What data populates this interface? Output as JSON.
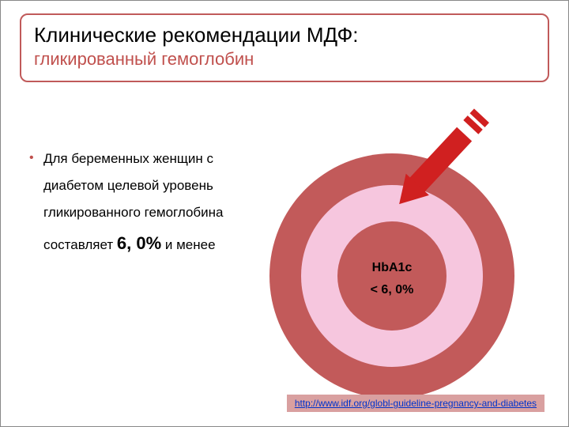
{
  "title": {
    "main": "Клинические рекомендации МДФ:",
    "sub": "гликированный гемоглобин"
  },
  "bullet": {
    "text_before": "Для беременных женщин с диабетом целевой уровень гликированного гемоглобина составляет ",
    "emph": "6, 0%",
    "text_after": " и менее"
  },
  "target": {
    "center_line1": "HbA1c",
    "center_line2": "< 6, 0%",
    "ring_outer_color": "#c25a5a",
    "ring_mid_color": "#f6c6de",
    "ring_inner_color": "#c25a5a",
    "arrow_color": "#d02020"
  },
  "citation": {
    "bg": "#d9a0a0",
    "url_text": "http://www.idf.org/globl-guideline-pregnancy-and-diabetes"
  }
}
